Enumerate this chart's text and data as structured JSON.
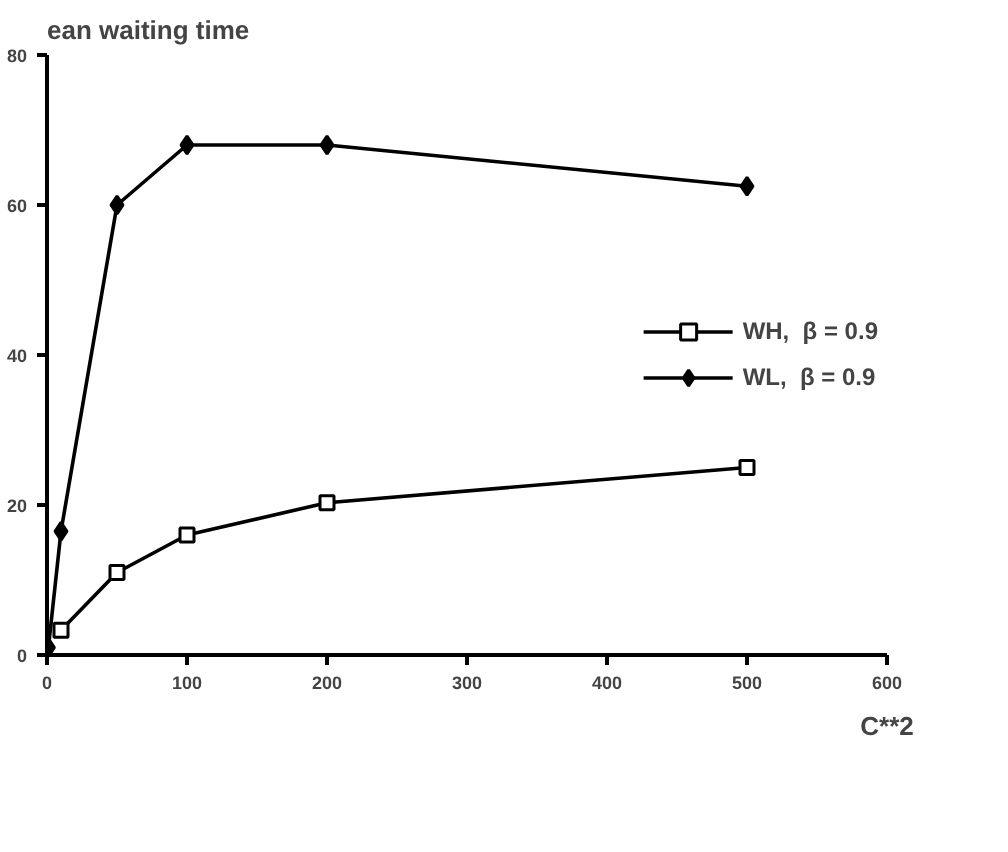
{
  "chart_data": {
    "type": "line",
    "ylabel": "ean waiting time",
    "xlabel": "C**2",
    "xlim": [
      0,
      600
    ],
    "xticks": [
      0,
      100,
      200,
      300,
      400,
      500,
      600
    ],
    "ylim": [
      0,
      80
    ],
    "yticks": [
      0,
      20,
      40,
      60,
      80
    ],
    "grid": false,
    "legend": "right",
    "line_style": "solid",
    "series": [
      {
        "name": "WH,  β = 0.9",
        "color": "#000000",
        "marker": "square",
        "x": [
          10,
          50,
          100,
          200,
          500
        ],
        "values": [
          3.3,
          11,
          16,
          20.3,
          25
        ]
      },
      {
        "name": "WL,  β = 0.9",
        "color": "#000000",
        "marker": "diamond",
        "x": [
          1,
          10,
          50,
          100,
          200,
          500
        ],
        "values": [
          1,
          16.5,
          60,
          68,
          68,
          62.5
        ]
      }
    ]
  }
}
